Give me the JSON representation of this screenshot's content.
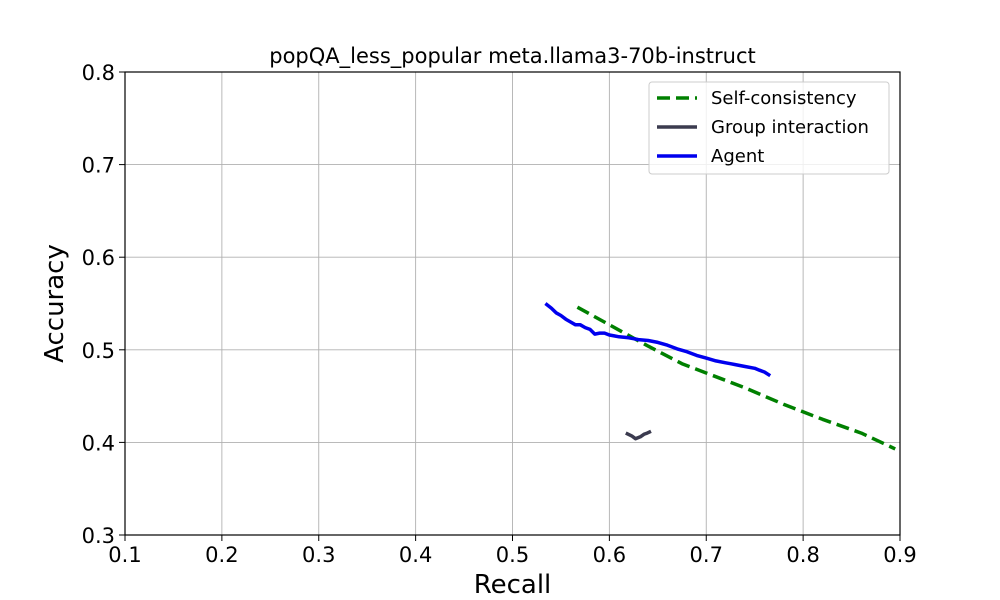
{
  "chart_data": {
    "type": "line",
    "title": "popQA_less_popular meta.llama3-70b-instruct",
    "xlabel": "Recall",
    "ylabel": "Accuracy",
    "xlim": [
      0.1,
      0.9
    ],
    "ylim": [
      0.3,
      0.8
    ],
    "xticks": [
      "0.1",
      "0.2",
      "0.3",
      "0.4",
      "0.5",
      "0.6",
      "0.7",
      "0.8",
      "0.9"
    ],
    "yticks": [
      "0.3",
      "0.4",
      "0.5",
      "0.6",
      "0.7",
      "0.8"
    ],
    "grid": true,
    "legend_position": "top-right",
    "series": [
      {
        "name": "Self-consistency",
        "color": "#008000",
        "style": "dashed",
        "x": [
          0.567,
          0.6,
          0.64,
          0.675,
          0.7,
          0.74,
          0.78,
          0.82,
          0.86,
          0.895
        ],
        "y": [
          0.546,
          0.527,
          0.504,
          0.485,
          0.475,
          0.459,
          0.441,
          0.425,
          0.41,
          0.393
        ]
      },
      {
        "name": "Group interaction",
        "color": "#3b3b4f",
        "style": "solid",
        "x": [
          0.617,
          0.623,
          0.627,
          0.632,
          0.636,
          0.639,
          0.643
        ],
        "y": [
          0.41,
          0.407,
          0.404,
          0.406,
          0.409,
          0.41,
          0.412
        ]
      },
      {
        "name": "Agent",
        "color": "#0000ee",
        "style": "solid",
        "x": [
          0.534,
          0.54,
          0.545,
          0.55,
          0.555,
          0.56,
          0.565,
          0.57,
          0.575,
          0.58,
          0.585,
          0.59,
          0.595,
          0.6,
          0.605,
          0.61,
          0.62,
          0.63,
          0.64,
          0.65,
          0.66,
          0.67,
          0.68,
          0.69,
          0.7,
          0.71,
          0.72,
          0.725,
          0.73,
          0.74,
          0.75,
          0.755,
          0.76,
          0.766
        ],
        "y": [
          0.55,
          0.545,
          0.54,
          0.537,
          0.533,
          0.53,
          0.527,
          0.527,
          0.524,
          0.522,
          0.517,
          0.518,
          0.518,
          0.516,
          0.515,
          0.514,
          0.513,
          0.511,
          0.51,
          0.508,
          0.505,
          0.501,
          0.498,
          0.494,
          0.491,
          0.488,
          0.486,
          0.485,
          0.484,
          0.482,
          0.48,
          0.478,
          0.476,
          0.472
        ]
      }
    ]
  }
}
